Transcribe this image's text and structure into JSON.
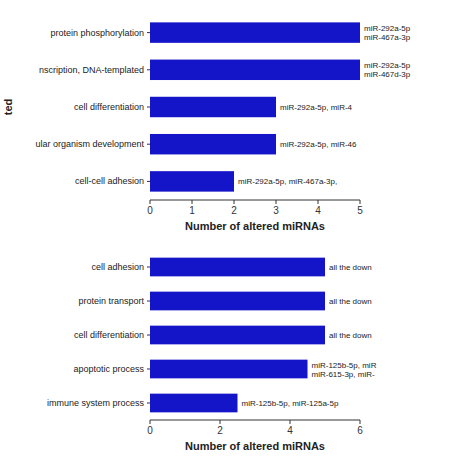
{
  "chart_data": [
    {
      "type": "bar",
      "orientation": "horizontal",
      "ylabel": "ted",
      "categories": [
        "cell-cell adhesion",
        "ular organism development",
        "cell differentiation",
        "nscription, DNA-templated",
        "protein phosphorylation"
      ],
      "values": [
        2,
        3,
        3,
        5,
        5
      ],
      "annotations": [
        "miR-292a-5p, miR-467a-3p,",
        "miR-292a-5p, miR-46",
        "miR-292a-5p, miR-4",
        "miR-292a-5p\nmiR-467d-3p",
        "miR-292a-5p\nmiR-467a-3p"
      ],
      "xlim": [
        0,
        5
      ],
      "xticks": [
        0,
        1,
        2,
        3,
        4,
        5
      ],
      "xlabel": "Number of altered miRNAs",
      "color": "#1414c8",
      "grid": false
    },
    {
      "type": "bar",
      "orientation": "horizontal",
      "categories": [
        "immune system process",
        "apoptotic process",
        "cell differentiation",
        "protein transport",
        "cell adhesion"
      ],
      "values": [
        2.5,
        4.5,
        5,
        5,
        5
      ],
      "annotations": [
        "miR-125b-5p, miR-125a-5p",
        "miR-125b-5p, miR\nmiR-615-3p, miR-",
        "all the down",
        "all the down",
        "all the down"
      ],
      "xlim": [
        0,
        6
      ],
      "xticks": [
        0,
        2,
        4,
        6
      ],
      "xlabel": "Number of altered miRNAs",
      "color": "#1414c8",
      "grid": false
    }
  ]
}
